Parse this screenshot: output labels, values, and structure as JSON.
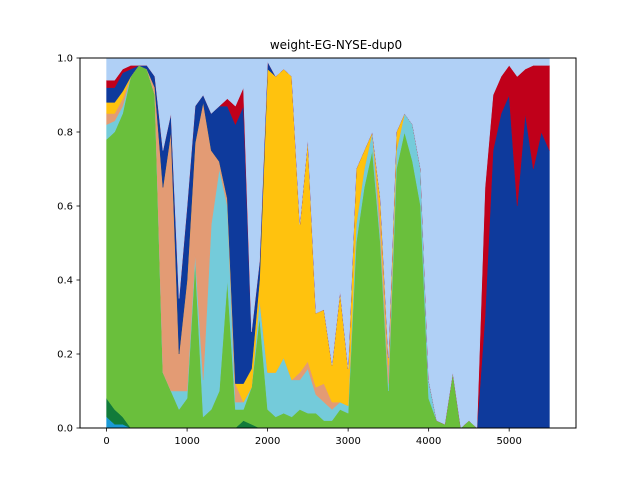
{
  "chart_data": {
    "type": "area",
    "stacked": true,
    "title": "weight-EG-NYSE-dup0",
    "xlabel": "",
    "ylabel": "",
    "xlim": [
      -330,
      5830
    ],
    "ylim": [
      0,
      1.0
    ],
    "grid": false,
    "legend": "none",
    "x_ticks": [
      0,
      1000,
      2000,
      3000,
      4000,
      5000
    ],
    "x_tick_labels": [
      "0",
      "1000",
      "2000",
      "3000",
      "4000",
      "5000"
    ],
    "y_ticks": [
      0.0,
      0.2,
      0.4,
      0.6,
      0.8,
      1.0
    ],
    "y_tick_labels": [
      "0.0",
      "0.2",
      "0.4",
      "0.6",
      "0.8",
      "1.0"
    ],
    "x": [
      0,
      100,
      200,
      300,
      400,
      500,
      600,
      700,
      800,
      900,
      1000,
      1100,
      1200,
      1300,
      1400,
      1500,
      1600,
      1700,
      1800,
      1900,
      2000,
      2100,
      2200,
      2300,
      2400,
      2500,
      2600,
      2700,
      2800,
      2900,
      3000,
      3100,
      3200,
      3300,
      3400,
      3500,
      3600,
      3700,
      3800,
      3900,
      4000,
      4100,
      4200,
      4300,
      4400,
      4500,
      4600,
      4700,
      4800,
      4900,
      5000,
      5100,
      5200,
      5300,
      5400,
      5500
    ],
    "series": [
      {
        "color": "#1b9ad6",
        "values": [
          0.03,
          0.01,
          0.01,
          0.0,
          0.0,
          0.0,
          0.0,
          0.0,
          0.0,
          0.0,
          0.0,
          0.0,
          0.0,
          0.0,
          0.0,
          0.0,
          0.0,
          0.0,
          0.0,
          0.0,
          0.0,
          0.0,
          0.0,
          0.0,
          0.0,
          0.0,
          0.0,
          0.0,
          0.0,
          0.0,
          0.0,
          0.0,
          0.0,
          0.0,
          0.0,
          0.0,
          0.0,
          0.0,
          0.0,
          0.0,
          0.0,
          0.0,
          0.0,
          0.0,
          0.0,
          0.0,
          0.0,
          0.0,
          0.0,
          0.0,
          0.0,
          0.0,
          0.0,
          0.0,
          0.0,
          0.0
        ]
      },
      {
        "color": "#127b3a",
        "values": [
          0.05,
          0.04,
          0.02,
          0.0,
          0.0,
          0.0,
          0.0,
          0.0,
          0.0,
          0.0,
          0.0,
          0.0,
          0.0,
          0.0,
          0.0,
          0.0,
          0.0,
          0.02,
          0.01,
          0.0,
          0.0,
          0.0,
          0.0,
          0.0,
          0.0,
          0.0,
          0.0,
          0.0,
          0.0,
          0.0,
          0.0,
          0.0,
          0.0,
          0.0,
          0.0,
          0.0,
          0.0,
          0.0,
          0.0,
          0.0,
          0.0,
          0.0,
          0.0,
          0.0,
          0.0,
          0.0,
          0.0,
          0.0,
          0.0,
          0.0,
          0.0,
          0.0,
          0.0,
          0.0,
          0.0,
          0.0
        ]
      },
      {
        "color": "#6abf3c",
        "values": [
          0.7,
          0.75,
          0.82,
          0.95,
          0.98,
          0.97,
          0.9,
          0.15,
          0.1,
          0.05,
          0.08,
          0.45,
          0.03,
          0.05,
          0.1,
          0.4,
          0.05,
          0.03,
          0.1,
          0.3,
          0.05,
          0.03,
          0.04,
          0.03,
          0.05,
          0.04,
          0.04,
          0.02,
          0.02,
          0.05,
          0.04,
          0.5,
          0.65,
          0.75,
          0.5,
          0.1,
          0.7,
          0.8,
          0.72,
          0.6,
          0.08,
          0.02,
          0.01,
          0.15,
          0.0,
          0.02,
          0.0,
          0.0,
          0.0,
          0.0,
          0.0,
          0.0,
          0.0,
          0.0,
          0.0,
          0.0
        ]
      },
      {
        "color": "#74cbda",
        "values": [
          0.04,
          0.03,
          0.02,
          0.0,
          0.0,
          0.0,
          0.0,
          0.0,
          0.0,
          0.05,
          0.02,
          0.02,
          0.1,
          0.5,
          0.6,
          0.2,
          0.02,
          0.02,
          0.0,
          0.05,
          0.1,
          0.12,
          0.15,
          0.1,
          0.08,
          0.12,
          0.05,
          0.05,
          0.03,
          0.02,
          0.02,
          0.05,
          0.05,
          0.05,
          0.02,
          0.02,
          0.05,
          0.05,
          0.1,
          0.1,
          0.05,
          0.0,
          0.0,
          0.0,
          0.0,
          0.0,
          0.0,
          0.0,
          0.0,
          0.0,
          0.0,
          0.0,
          0.0,
          0.0,
          0.0,
          0.0
        ]
      },
      {
        "color": "#e39b74",
        "values": [
          0.03,
          0.02,
          0.02,
          0.0,
          0.0,
          0.0,
          0.02,
          0.5,
          0.7,
          0.1,
          0.3,
          0.3,
          0.75,
          0.2,
          0.02,
          0.02,
          0.05,
          0.0,
          0.0,
          0.0,
          0.0,
          0.0,
          0.0,
          0.0,
          0.02,
          0.02,
          0.02,
          0.05,
          0.02,
          0.0,
          0.0,
          0.0,
          0.0,
          0.0,
          0.05,
          0.05,
          0.0,
          0.0,
          0.0,
          0.0,
          0.0,
          0.0,
          0.0,
          0.0,
          0.0,
          0.0,
          0.0,
          0.0,
          0.0,
          0.0,
          0.0,
          0.0,
          0.0,
          0.0,
          0.0,
          0.0
        ]
      },
      {
        "color": "#ffc20e",
        "values": [
          0.03,
          0.03,
          0.02,
          0.0,
          0.0,
          0.0,
          0.0,
          0.0,
          0.0,
          0.0,
          0.0,
          0.0,
          0.0,
          0.0,
          0.0,
          0.0,
          0.0,
          0.05,
          0.05,
          0.05,
          0.82,
          0.8,
          0.78,
          0.82,
          0.4,
          0.6,
          0.2,
          0.2,
          0.1,
          0.3,
          0.1,
          0.15,
          0.05,
          0.0,
          0.05,
          0.02,
          0.05,
          0.0,
          0.0,
          0.0,
          0.0,
          0.0,
          0.0,
          0.0,
          0.0,
          0.0,
          0.0,
          0.0,
          0.0,
          0.0,
          0.0,
          0.0,
          0.0,
          0.0,
          0.0,
          0.0
        ]
      },
      {
        "color": "#0e3a9c",
        "values": [
          0.04,
          0.04,
          0.05,
          0.02,
          0.0,
          0.01,
          0.03,
          0.1,
          0.05,
          0.15,
          0.2,
          0.1,
          0.02,
          0.1,
          0.15,
          0.25,
          0.7,
          0.75,
          0.1,
          0.05,
          0.02,
          0.0,
          0.0,
          0.0,
          0.0,
          0.0,
          0.0,
          0.0,
          0.0,
          0.0,
          0.0,
          0.0,
          0.0,
          0.0,
          0.0,
          0.0,
          0.0,
          0.0,
          0.0,
          0.0,
          0.0,
          0.0,
          0.0,
          0.0,
          0.0,
          0.0,
          0.0,
          0.3,
          0.75,
          0.85,
          0.9,
          0.6,
          0.85,
          0.7,
          0.8,
          0.75
        ]
      },
      {
        "color": "#c0001a",
        "values": [
          0.02,
          0.02,
          0.01,
          0.01,
          0.0,
          0.0,
          0.0,
          0.0,
          0.0,
          0.0,
          0.0,
          0.0,
          0.0,
          0.0,
          0.0,
          0.02,
          0.05,
          0.05,
          0.0,
          0.0,
          0.0,
          0.0,
          0.0,
          0.0,
          0.0,
          0.0,
          0.0,
          0.0,
          0.0,
          0.0,
          0.0,
          0.0,
          0.0,
          0.0,
          0.0,
          0.0,
          0.0,
          0.0,
          0.0,
          0.0,
          0.0,
          0.0,
          0.0,
          0.0,
          0.0,
          0.0,
          0.0,
          0.35,
          0.15,
          0.1,
          0.08,
          0.35,
          0.12,
          0.28,
          0.18,
          0.23
        ]
      },
      {
        "color": "#b0d0f6",
        "values": [
          0.06,
          0.06,
          0.04,
          0.02,
          0.02,
          0.02,
          0.05,
          0.25,
          0.15,
          0.65,
          0.4,
          0.13,
          0.1,
          0.15,
          0.13,
          0.11,
          0.13,
          0.08,
          0.74,
          0.55,
          0.01,
          0.05,
          0.03,
          0.05,
          0.45,
          0.22,
          0.69,
          0.68,
          0.83,
          0.63,
          0.84,
          0.3,
          0.25,
          0.2,
          0.38,
          0.81,
          0.2,
          0.15,
          0.18,
          0.3,
          0.87,
          0.98,
          0.99,
          0.85,
          1.0,
          0.98,
          1.0,
          0.35,
          0.1,
          0.05,
          0.02,
          0.05,
          0.03,
          0.02,
          0.02,
          0.02
        ]
      }
    ]
  }
}
